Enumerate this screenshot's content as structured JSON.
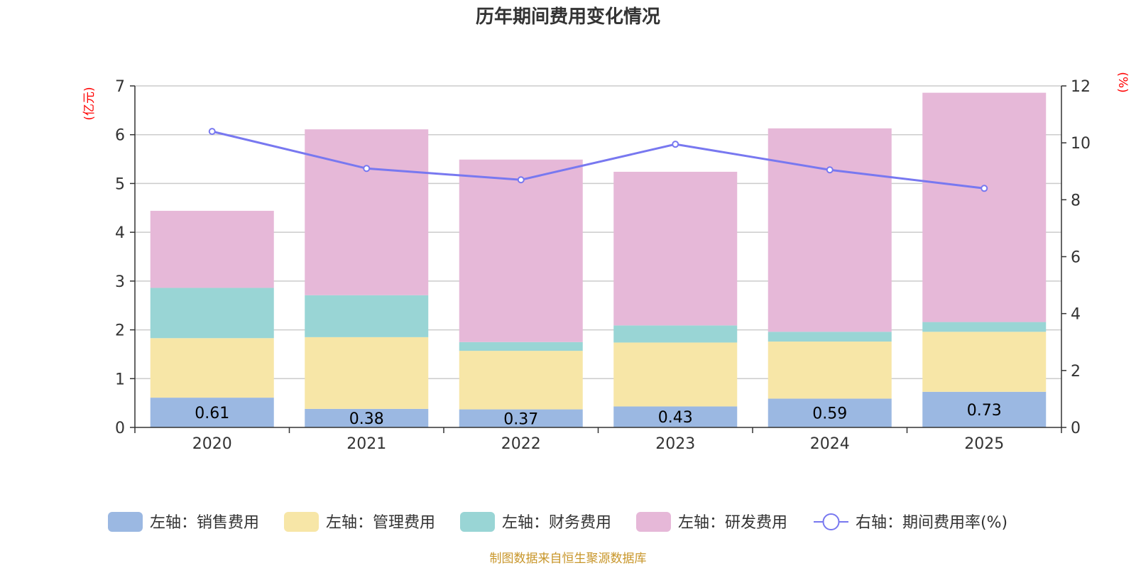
{
  "chart_data": {
    "type": "bar",
    "title": "历年期间费用变化情况",
    "categories": [
      "2020",
      "2021",
      "2022",
      "2023",
      "2024",
      "2025"
    ],
    "left_axis": {
      "unit_label": "(亿元)",
      "ylim": [
        0,
        7
      ],
      "ticks": [
        "0",
        "1",
        "2",
        "3",
        "4",
        "5",
        "6",
        "7"
      ]
    },
    "right_axis": {
      "unit_label": "(%)",
      "ylim": [
        0,
        12
      ],
      "ticks": [
        "0",
        "2",
        "4",
        "6",
        "8",
        "10",
        "12"
      ]
    },
    "series": [
      {
        "name": "左轴：销售费用",
        "type": "bar",
        "stack": true,
        "color": "#9bb8e2",
        "values": [
          0.61,
          0.38,
          0.37,
          0.43,
          0.59,
          0.73
        ],
        "labels": [
          "0.61",
          "0.38",
          "0.37",
          "0.43",
          "0.59",
          "0.73"
        ]
      },
      {
        "name": "左轴：管理费用",
        "type": "bar",
        "stack": true,
        "color": "#f7e6a7",
        "values": [
          1.22,
          1.47,
          1.2,
          1.31,
          1.17,
          1.23
        ]
      },
      {
        "name": "左轴：财务费用",
        "type": "bar",
        "stack": true,
        "color": "#99d5d5",
        "values": [
          1.03,
          0.86,
          0.18,
          0.35,
          0.2,
          0.2
        ]
      },
      {
        "name": "左轴：研发费用",
        "type": "bar",
        "stack": true,
        "color": "#e6b8d8",
        "values": [
          1.58,
          3.4,
          3.74,
          3.15,
          4.17,
          4.7
        ]
      },
      {
        "name": "右轴：期间费用率(%)",
        "type": "line",
        "axis": "right",
        "color": "#7878f0",
        "values": [
          10.4,
          9.1,
          8.7,
          9.95,
          9.05,
          8.4
        ]
      }
    ],
    "grid": true,
    "legend_position": "bottom"
  },
  "source": "制图数据来自恒生聚源数据库"
}
